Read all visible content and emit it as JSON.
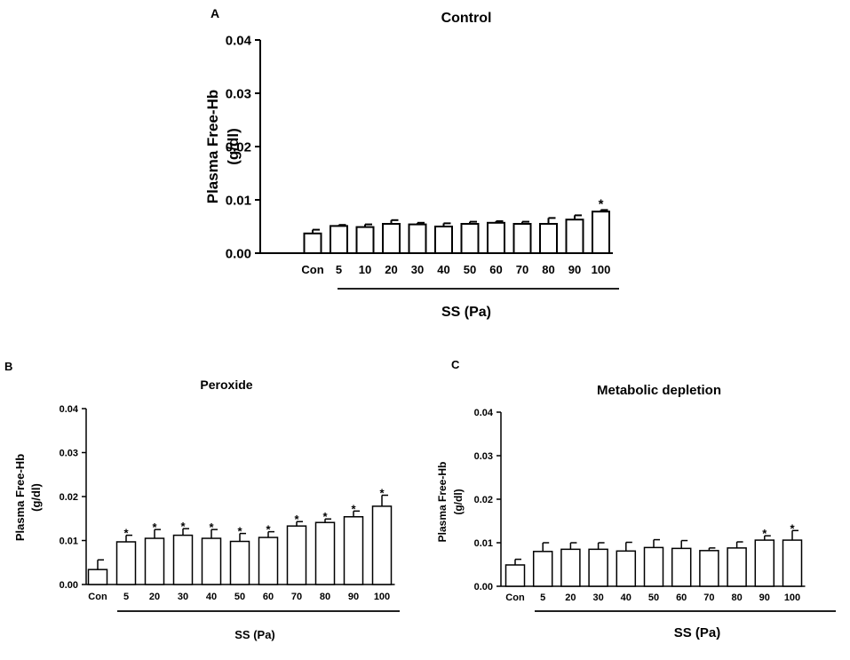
{
  "chart_data": [
    {
      "panel_label": "A",
      "type": "bar",
      "title": "Control",
      "ylabel": "Plasma Free-Hb\n(g/dl)",
      "xlabel": "SS (Pa)",
      "ylim": [
        0,
        0.04
      ],
      "yticks": [
        "0.00",
        "0.01",
        "0.02",
        "0.03",
        "0.04"
      ],
      "categories": [
        "Con",
        "5",
        "10",
        "20",
        "30",
        "40",
        "50",
        "60",
        "70",
        "80",
        "90",
        "100"
      ],
      "values": [
        0.0037,
        0.0051,
        0.0049,
        0.0055,
        0.0054,
        0.005,
        0.0055,
        0.0057,
        0.0055,
        0.0055,
        0.0063,
        0.0078
      ],
      "errors": [
        0.0007,
        0.0002,
        0.0005,
        0.0007,
        0.0003,
        0.0006,
        0.0004,
        0.0003,
        0.0004,
        0.0011,
        0.0008,
        0.0003
      ],
      "significance": [
        "",
        "",
        "",
        "",
        "",
        "",
        "",
        "",
        "",
        "",
        "",
        "*"
      ]
    },
    {
      "panel_label": "B",
      "type": "bar",
      "title": "Peroxide",
      "ylabel": "Plasma Free-Hb\n(g/dl)",
      "xlabel": "SS (Pa)",
      "ylim": [
        0,
        0.04
      ],
      "yticks": [
        "0.00",
        "0.01",
        "0.02",
        "0.03",
        "0.04"
      ],
      "categories": [
        "Con",
        "5",
        "20",
        "30",
        "40",
        "50",
        "60",
        "70",
        "80",
        "90",
        "100"
      ],
      "values": [
        0.0034,
        0.0097,
        0.0105,
        0.0112,
        0.0105,
        0.0098,
        0.0107,
        0.0133,
        0.0141,
        0.0154,
        0.0178
      ],
      "errors": [
        0.0022,
        0.0015,
        0.002,
        0.0015,
        0.002,
        0.0018,
        0.0013,
        0.001,
        0.0008,
        0.0013,
        0.0025
      ],
      "significance": [
        "",
        "*",
        "*",
        "*",
        "*",
        "*",
        "*",
        "*",
        "*",
        "*",
        "*"
      ]
    },
    {
      "panel_label": "C",
      "type": "bar",
      "title": "Metabolic depletion",
      "ylabel": "Plasma Free-Hb\n(g/dl)",
      "xlabel": "SS (Pa)",
      "ylim": [
        0,
        0.04
      ],
      "yticks": [
        "0.00",
        "0.01",
        "0.02",
        "0.03",
        "0.04"
      ],
      "categories": [
        "Con",
        "5",
        "20",
        "30",
        "40",
        "50",
        "60",
        "70",
        "80",
        "90",
        "100"
      ],
      "values": [
        0.0049,
        0.008,
        0.0085,
        0.0085,
        0.0081,
        0.0089,
        0.0087,
        0.0082,
        0.0088,
        0.0106,
        0.0106
      ],
      "errors": [
        0.0013,
        0.002,
        0.0015,
        0.0015,
        0.002,
        0.0018,
        0.0018,
        0.0006,
        0.0014,
        0.001,
        0.0022
      ],
      "significance": [
        "",
        "",
        "",
        "",
        "",
        "",
        "",
        "",
        "",
        "*",
        "*"
      ]
    }
  ]
}
